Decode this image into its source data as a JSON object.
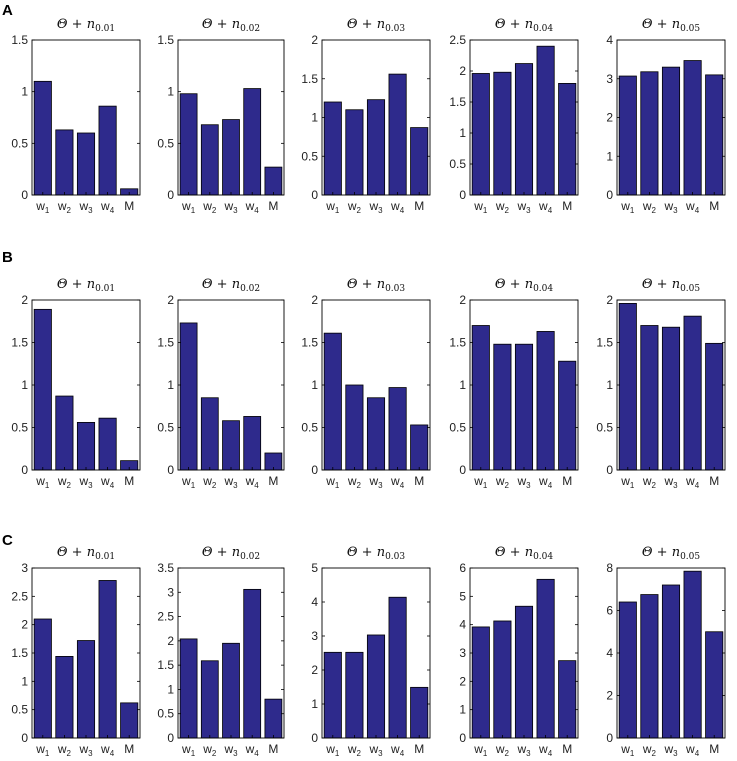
{
  "figure": {
    "bar_color": "#2e2a8c",
    "categories": [
      {
        "base": "w",
        "sub": "1"
      },
      {
        "base": "w",
        "sub": "2"
      },
      {
        "base": "w",
        "sub": "3"
      },
      {
        "base": "w",
        "sub": "4"
      },
      {
        "base": "M",
        "sub": ""
      }
    ]
  },
  "chart_data": [
    {
      "panel": "A",
      "subplots": [
        {
          "type": "bar",
          "title_main": "Θ + n",
          "title_sub": "0.01",
          "ylim": [
            0,
            1.5
          ],
          "yticks": [
            "0",
            "0.5",
            "1",
            "1.5"
          ],
          "values": [
            1.1,
            0.63,
            0.6,
            0.86,
            0.06
          ]
        },
        {
          "type": "bar",
          "title_main": "Θ + n",
          "title_sub": "0.02",
          "ylim": [
            0,
            1.5
          ],
          "yticks": [
            "0",
            "0.5",
            "1",
            "1.5"
          ],
          "values": [
            0.98,
            0.68,
            0.73,
            1.03,
            0.27
          ]
        },
        {
          "type": "bar",
          "title_main": "Θ + n",
          "title_sub": "0.03",
          "ylim": [
            0,
            2
          ],
          "yticks": [
            "0",
            "0.5",
            "1",
            "1.5",
            "2"
          ],
          "values": [
            1.2,
            1.1,
            1.23,
            1.56,
            0.87
          ]
        },
        {
          "type": "bar",
          "title_main": "Θ + n",
          "title_sub": "0.04",
          "ylim": [
            0,
            2.5
          ],
          "yticks": [
            "0",
            "0.5",
            "1",
            "1.5",
            "2",
            "2.5"
          ],
          "values": [
            1.96,
            1.98,
            2.12,
            2.4,
            1.8
          ]
        },
        {
          "type": "bar",
          "title_main": "Θ + n",
          "title_sub": "0.05",
          "ylim": [
            0,
            4
          ],
          "yticks": [
            "0",
            "1",
            "2",
            "3",
            "4"
          ],
          "values": [
            3.07,
            3.18,
            3.3,
            3.47,
            3.1
          ]
        }
      ]
    },
    {
      "panel": "B",
      "subplots": [
        {
          "type": "bar",
          "title_main": "Θ + n",
          "title_sub": "0.01",
          "ylim": [
            0,
            2
          ],
          "yticks": [
            "0",
            "0.5",
            "1",
            "1.5",
            "2"
          ],
          "values": [
            1.89,
            0.87,
            0.56,
            0.61,
            0.11
          ]
        },
        {
          "type": "bar",
          "title_main": "Θ + n",
          "title_sub": "0.02",
          "ylim": [
            0,
            2
          ],
          "yticks": [
            "0",
            "0.5",
            "1",
            "1.5",
            "2"
          ],
          "values": [
            1.73,
            0.85,
            0.58,
            0.63,
            0.2
          ]
        },
        {
          "type": "bar",
          "title_main": "Θ + n",
          "title_sub": "0.03",
          "ylim": [
            0,
            2
          ],
          "yticks": [
            "0",
            "0.5",
            "1",
            "1.5",
            "2"
          ],
          "values": [
            1.61,
            1.0,
            0.85,
            0.97,
            0.53
          ]
        },
        {
          "type": "bar",
          "title_main": "Θ + n",
          "title_sub": "0.04",
          "ylim": [
            0,
            2
          ],
          "yticks": [
            "0",
            "0.5",
            "1",
            "1.5",
            "2"
          ],
          "values": [
            1.7,
            1.48,
            1.48,
            1.63,
            1.28
          ]
        },
        {
          "type": "bar",
          "title_main": "Θ + n",
          "title_sub": "0.05",
          "ylim": [
            0,
            2
          ],
          "yticks": [
            "0",
            "0.5",
            "1",
            "1.5",
            "2"
          ],
          "values": [
            1.96,
            1.7,
            1.68,
            1.81,
            1.49
          ]
        }
      ]
    },
    {
      "panel": "C",
      "subplots": [
        {
          "type": "bar",
          "title_main": "Θ + n",
          "title_sub": "0.01",
          "ylim": [
            0,
            3
          ],
          "yticks": [
            "0",
            "0.5",
            "1",
            "1.5",
            "2",
            "2.5",
            "3"
          ],
          "values": [
            2.1,
            1.44,
            1.72,
            2.78,
            0.62
          ]
        },
        {
          "type": "bar",
          "title_main": "Θ + n",
          "title_sub": "0.02",
          "ylim": [
            0,
            3.5
          ],
          "yticks": [
            "0",
            "0.5",
            "1",
            "1.5",
            "2",
            "2.5",
            "3",
            "3.5"
          ],
          "values": [
            2.04,
            1.59,
            1.95,
            3.06,
            0.8
          ]
        },
        {
          "type": "bar",
          "title_main": "Θ + n",
          "title_sub": "0.03",
          "ylim": [
            0,
            5
          ],
          "yticks": [
            "0",
            "1",
            "2",
            "3",
            "4",
            "5"
          ],
          "values": [
            2.52,
            2.52,
            3.03,
            4.14,
            1.49
          ]
        },
        {
          "type": "bar",
          "title_main": "Θ + n",
          "title_sub": "0.04",
          "ylim": [
            0,
            6
          ],
          "yticks": [
            "0",
            "1",
            "2",
            "3",
            "4",
            "5",
            "6"
          ],
          "values": [
            3.92,
            4.13,
            4.65,
            5.6,
            2.73
          ]
        },
        {
          "type": "bar",
          "title_main": "Θ + n",
          "title_sub": "0.05",
          "ylim": [
            0,
            8
          ],
          "yticks": [
            "0",
            "2",
            "4",
            "6",
            "8"
          ],
          "values": [
            6.4,
            6.75,
            7.2,
            7.85,
            5.0
          ]
        }
      ]
    }
  ]
}
